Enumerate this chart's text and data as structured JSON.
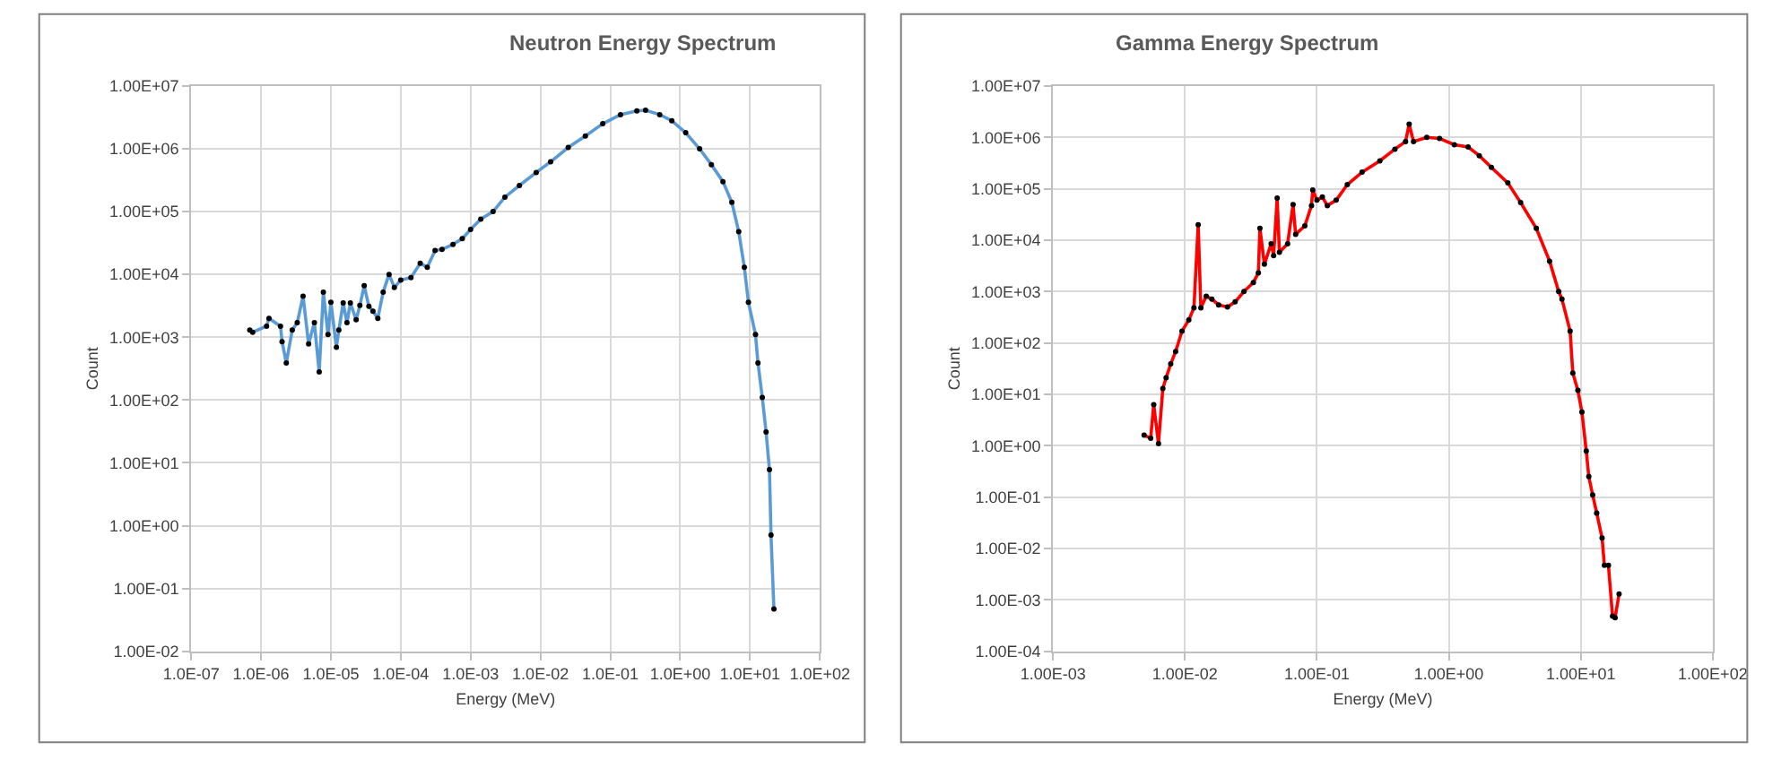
{
  "chart_data": [
    {
      "type": "line",
      "title": "Neutron Energy Spectrum",
      "xlabel": "Energy (MeV)",
      "ylabel": "Count",
      "log": "xy",
      "grid": true,
      "marker": "circle",
      "line_style": "solid",
      "xlim": [
        1e-07,
        100
      ],
      "ylim": [
        0.01,
        10000000
      ],
      "xticks": [
        {
          "value": 1e-07,
          "label": "1.0E-07"
        },
        {
          "value": 1e-06,
          "label": "1.0E-06"
        },
        {
          "value": 1e-05,
          "label": "1.0E-05"
        },
        {
          "value": 0.0001,
          "label": "1.0E-04"
        },
        {
          "value": 0.001,
          "label": "1.0E-03"
        },
        {
          "value": 0.01,
          "label": "1.0E-02"
        },
        {
          "value": 0.1,
          "label": "1.0E-01"
        },
        {
          "value": 1,
          "label": "1.0E+00"
        },
        {
          "value": 10,
          "label": "1.0E+01"
        },
        {
          "value": 100,
          "label": "1.0E+02"
        }
      ],
      "yticks": [
        {
          "value": 0.01,
          "label": "1.00E-02"
        },
        {
          "value": 0.1,
          "label": "1.00E-01"
        },
        {
          "value": 1,
          "label": "1.00E+00"
        },
        {
          "value": 10,
          "label": "1.00E+01"
        },
        {
          "value": 100,
          "label": "1.00E+02"
        },
        {
          "value": 1000,
          "label": "1.00E+03"
        },
        {
          "value": 10000,
          "label": "1.00E+04"
        },
        {
          "value": 100000,
          "label": "1.00E+05"
        },
        {
          "value": 1000000,
          "label": "1.00E+06"
        },
        {
          "value": 10000000,
          "label": "1.00E+07"
        }
      ],
      "series": [
        {
          "color": "#5b9bd5",
          "x": [
            6.9e-07,
            7.6e-07,
            1.2e-06,
            1.3e-06,
            1.9e-06,
            2e-06,
            2.3e-06,
            2.8e-06,
            3.3e-06,
            4e-06,
            4.8e-06,
            5.8e-06,
            6.8e-06,
            7.8e-06,
            9.1e-06,
            1e-05,
            1.2e-05,
            1.3e-05,
            1.5e-05,
            1.7e-05,
            1.9e-05,
            2.3e-05,
            2.6e-05,
            3e-05,
            3.5e-05,
            4e-05,
            4.7e-05,
            5.6e-05,
            6.8e-05,
            8.1e-05,
            0.0001,
            0.00014,
            0.00019,
            0.00024,
            0.00031,
            0.00039,
            0.00056,
            0.00076,
            0.001,
            0.0014,
            0.0021,
            0.0031,
            0.005,
            0.0087,
            0.014,
            0.025,
            0.044,
            0.078,
            0.14,
            0.24,
            0.32,
            0.51,
            0.76,
            1.2,
            1.9,
            2.8,
            4.1,
            5.5,
            6.9,
            8.3,
            9.5,
            12,
            13,
            15,
            17,
            19,
            20,
            22
          ],
          "values": [
            1300,
            1200,
            1500,
            2000,
            1500,
            850,
            390,
            1300,
            1700,
            4500,
            780,
            1700,
            280,
            5200,
            1100,
            3600,
            690,
            1300,
            3500,
            1700,
            3500,
            1900,
            3200,
            6600,
            3100,
            2600,
            2000,
            5200,
            10000,
            6200,
            8100,
            8900,
            15000,
            13000,
            24000,
            25000,
            30000,
            37000,
            52000,
            76000,
            100000,
            170000,
            260000,
            420000,
            620000,
            1050000,
            1600000,
            2500000,
            3500000,
            4000000,
            4100000,
            3500000,
            2800000,
            1800000,
            1000000,
            560000,
            300000,
            140000,
            48000,
            13000,
            3600,
            1100,
            390,
            110,
            31,
            7.8,
            0.71,
            0.047
          ]
        }
      ]
    },
    {
      "type": "line",
      "title": "Gamma Energy Spectrum",
      "xlabel": "Energy (MeV)",
      "ylabel": "Count",
      "log": "xy",
      "grid": true,
      "marker": "circle",
      "line_style": "solid",
      "xlim": [
        0.001,
        100
      ],
      "ylim": [
        0.0001,
        10000000
      ],
      "xticks": [
        {
          "value": 0.001,
          "label": "1.00E-03"
        },
        {
          "value": 0.01,
          "label": "1.00E-02"
        },
        {
          "value": 0.1,
          "label": "1.00E-01"
        },
        {
          "value": 1,
          "label": "1.00E+00"
        },
        {
          "value": 10,
          "label": "1.00E+01"
        },
        {
          "value": 100,
          "label": "1.00E+02"
        }
      ],
      "yticks": [
        {
          "value": 0.0001,
          "label": "1.00E-04"
        },
        {
          "value": 0.001,
          "label": "1.00E-03"
        },
        {
          "value": 0.01,
          "label": "1.00E-02"
        },
        {
          "value": 0.1,
          "label": "1.00E-01"
        },
        {
          "value": 1,
          "label": "1.00E+00"
        },
        {
          "value": 10,
          "label": "1.00E+01"
        },
        {
          "value": 100,
          "label": "1.00E+02"
        },
        {
          "value": 1000,
          "label": "1.00E+03"
        },
        {
          "value": 10000,
          "label": "1.00E+04"
        },
        {
          "value": 100000,
          "label": "1.00E+05"
        },
        {
          "value": 1000000,
          "label": "1.00E+06"
        },
        {
          "value": 10000000,
          "label": "1.00E+07"
        }
      ],
      "series": [
        {
          "color": "#ff0000",
          "x": [
            0.0049,
            0.0055,
            0.0058,
            0.0063,
            0.0068,
            0.0072,
            0.0078,
            0.0085,
            0.0095,
            0.0107,
            0.0117,
            0.0126,
            0.0132,
            0.0145,
            0.016,
            0.018,
            0.021,
            0.024,
            0.028,
            0.033,
            0.036,
            0.037,
            0.04,
            0.045,
            0.047,
            0.05,
            0.052,
            0.06,
            0.066,
            0.069,
            0.081,
            0.091,
            0.093,
            0.1,
            0.11,
            0.12,
            0.14,
            0.17,
            0.22,
            0.3,
            0.39,
            0.47,
            0.5,
            0.54,
            0.68,
            0.85,
            1.1,
            1.4,
            1.7,
            2.1,
            2.8,
            3.5,
            4.6,
            5.8,
            6.8,
            7.2,
            8.3,
            8.7,
            9.5,
            10.2,
            11,
            11.5,
            12.3,
            13.2,
            14.5,
            15.1,
            16.2,
            17.4,
            18.2,
            19.5
          ],
          "values": [
            1.6,
            1.4,
            6.3,
            1.1,
            13,
            21,
            39,
            68,
            170,
            280,
            480,
            20000,
            480,
            810,
            710,
            550,
            500,
            630,
            1000,
            1500,
            2300,
            17000,
            3400,
            8500,
            5000,
            66000,
            5800,
            8500,
            49000,
            13000,
            19000,
            47000,
            95000,
            60000,
            69000,
            47000,
            60000,
            120000,
            210000,
            350000,
            590000,
            830000,
            1800000,
            830000,
            1000000,
            950000,
            720000,
            650000,
            440000,
            260000,
            130000,
            54000,
            17000,
            3900,
            1000,
            710,
            170,
            26,
            12,
            4.5,
            0.79,
            0.25,
            0.11,
            0.049,
            0.016,
            0.0047,
            0.0047,
            0.00048,
            0.00045,
            0.0013
          ]
        }
      ]
    }
  ]
}
